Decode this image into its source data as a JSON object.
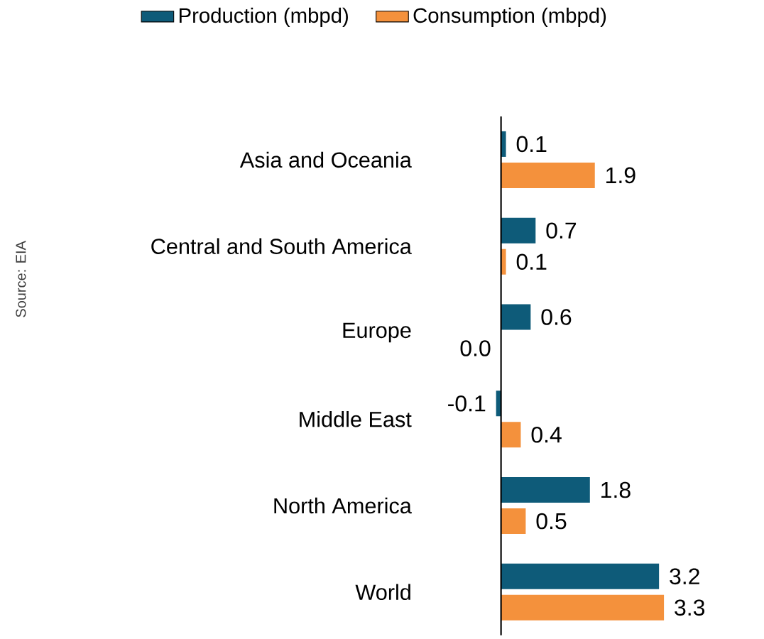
{
  "chart_data": {
    "type": "bar",
    "orientation": "horizontal",
    "categories": [
      "Asia and Oceania",
      "Central and South America",
      "Europe",
      "Middle East",
      "North America",
      "World"
    ],
    "series": [
      {
        "name": "Production (mbpd)",
        "color": "#0e5b79",
        "values": [
          0.1,
          0.7,
          0.6,
          -0.1,
          1.8,
          3.2
        ],
        "value_labels": [
          "0.1",
          "0.7",
          "0.6",
          "-0.1",
          "1.8",
          "3.2"
        ]
      },
      {
        "name": "Consumption (mbpd)",
        "color": "#f4913c",
        "values": [
          1.9,
          0.1,
          0.0,
          0.4,
          0.5,
          3.3
        ],
        "value_labels": [
          "1.9",
          "0.1",
          "0.0",
          "0.4",
          "0.5",
          "3.3"
        ]
      }
    ],
    "legend": "top",
    "annotations": [
      "Source: EIA"
    ]
  }
}
